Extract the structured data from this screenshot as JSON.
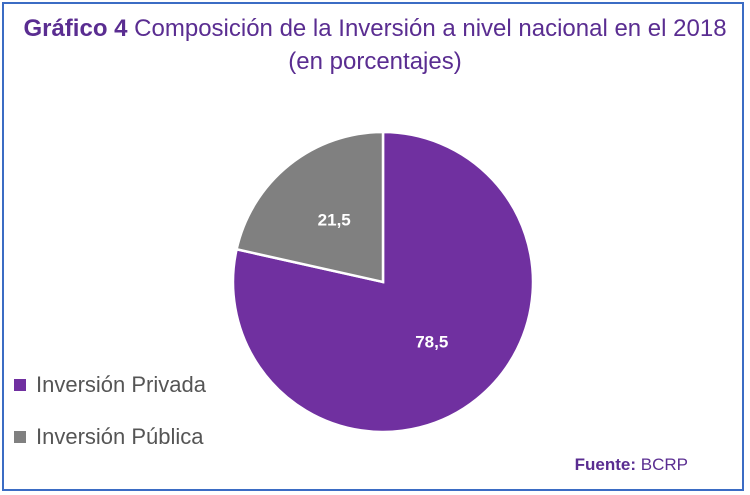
{
  "header": {
    "title_lead": "Gráfico  4",
    "title_main": "Composición de la Inversión a nivel nacional en el 2018",
    "subtitle": "(en porcentajes)"
  },
  "chart_data": {
    "type": "pie",
    "start_angle_deg": 0,
    "direction": "clockwise",
    "slices": [
      {
        "label": "Inversión Privada",
        "value": 78.5,
        "display": "78,5",
        "color": "#7030a0"
      },
      {
        "label": "Inversión Pública",
        "value": 21.5,
        "display": "21,5",
        "color": "#808080"
      }
    ],
    "legend_position": "left-bottom"
  },
  "source": {
    "label": "Fuente:",
    "value": "BCRP"
  },
  "colors": {
    "title": "#5a2d91",
    "border": "#3b6cc4",
    "slice_separator": "#ffffff"
  }
}
